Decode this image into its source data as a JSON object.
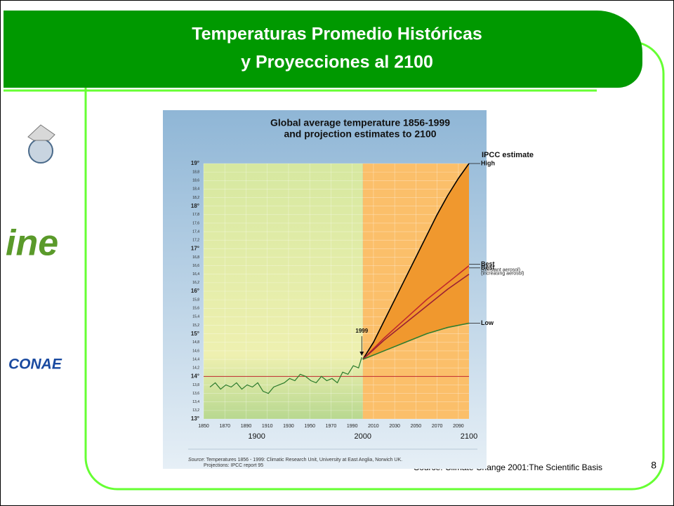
{
  "slide": {
    "title_line1": "Temperaturas Promedio Históricas",
    "title_line2": "y Proyecciones al 2100",
    "logo2": "ine",
    "logo3": "CONAE",
    "footer_source": "Source: Climate Change 2001:The Scientific Basis",
    "page_number": "8"
  },
  "chart_data": {
    "type": "line",
    "title_line1": "Global average temperature 1856-1999",
    "title_line2": "and projection estimates to 2100",
    "legend_title": "IPCC estimate",
    "source_label": "Source",
    "source_text": ": Temperatures 1856 - 1999: Climatic Research Unit, University at East Anglia, Norwich UK.",
    "source_text2": "Projections: IPCC report 95",
    "annotation": "1999",
    "reference_line": 14,
    "xlim": [
      1850,
      2100
    ],
    "xticks": [
      1850,
      1870,
      1890,
      1910,
      1930,
      1950,
      1970,
      1990,
      2010,
      2030,
      2050,
      2070,
      2090
    ],
    "xticks_major": [
      1900,
      2000,
      2100
    ],
    "projection_start": 2000,
    "ylim": [
      13,
      19
    ],
    "yticks": [
      {
        "value": 13,
        "label": "13°"
      },
      {
        "value": 13.2,
        "label": "13,2"
      },
      {
        "value": 13.4,
        "label": "13,4"
      },
      {
        "value": 13.6,
        "label": "13,6"
      },
      {
        "value": 13.8,
        "label": "13,8"
      },
      {
        "value": 14,
        "label": "14°"
      },
      {
        "value": 14.2,
        "label": "14,2"
      },
      {
        "value": 14.4,
        "label": "14,4"
      },
      {
        "value": 14.6,
        "label": "14,6"
      },
      {
        "value": 14.8,
        "label": "14,8"
      },
      {
        "value": 15,
        "label": "15°"
      },
      {
        "value": 15.2,
        "label": "15,2"
      },
      {
        "value": 15.4,
        "label": "15,4"
      },
      {
        "value": 15.6,
        "label": "15,6"
      },
      {
        "value": 15.8,
        "label": "15,8"
      },
      {
        "value": 16,
        "label": "16°"
      },
      {
        "value": 16.2,
        "label": "16,2"
      },
      {
        "value": 16.4,
        "label": "16,4"
      },
      {
        "value": 16.6,
        "label": "16,6"
      },
      {
        "value": 16.8,
        "label": "16,8"
      },
      {
        "value": 17,
        "label": "17°"
      },
      {
        "value": 17.2,
        "label": "17,2"
      },
      {
        "value": 17.4,
        "label": "17,4"
      },
      {
        "value": 17.6,
        "label": "17,6"
      },
      {
        "value": 17.8,
        "label": "17,8"
      },
      {
        "value": 18,
        "label": "18°"
      },
      {
        "value": 18.2,
        "label": "18,2"
      },
      {
        "value": 18.4,
        "label": "18,4"
      },
      {
        "value": 18.6,
        "label": "18,6"
      },
      {
        "value": 18.8,
        "label": "18,8"
      },
      {
        "value": 19,
        "label": "19°"
      }
    ],
    "series": [
      {
        "color": "#2a7a2a",
        "x": [
          1856,
          1861,
          1866,
          1871,
          1876,
          1881,
          1886,
          1891,
          1896,
          1901,
          1906,
          1911,
          1916,
          1921,
          1926,
          1931,
          1936,
          1941,
          1946,
          1951,
          1956,
          1961,
          1966,
          1971,
          1976,
          1981,
          1986,
          1991,
          1996,
          1999
        ],
        "values": [
          13.75,
          13.85,
          13.7,
          13.8,
          13.75,
          13.85,
          13.7,
          13.8,
          13.75,
          13.85,
          13.65,
          13.6,
          13.75,
          13.8,
          13.85,
          13.95,
          13.9,
          14.05,
          14.0,
          13.9,
          13.85,
          14.0,
          13.9,
          13.95,
          13.85,
          14.1,
          14.05,
          14.25,
          14.2,
          14.45
        ]
      },
      {
        "name": "High",
        "color": "#000000",
        "x": [
          2000,
          2010,
          2020,
          2030,
          2040,
          2050,
          2060,
          2070,
          2080,
          2090,
          2100
        ],
        "values": [
          14.4,
          14.8,
          15.3,
          15.8,
          16.3,
          16.8,
          17.3,
          17.8,
          18.25,
          18.65,
          19.0
        ]
      },
      {
        "name": "Best",
        "note": "(constant aerosol)",
        "color": "#c0282d",
        "x": [
          2000,
          2020,
          2040,
          2060,
          2080,
          2100
        ],
        "values": [
          14.4,
          14.9,
          15.35,
          15.8,
          16.2,
          16.6
        ]
      },
      {
        "name": "Best",
        "note": "(increasing aerosol)",
        "color": "#9a1f35",
        "x": [
          2000,
          2020,
          2040,
          2060,
          2080,
          2100
        ],
        "values": [
          14.4,
          14.85,
          15.25,
          15.65,
          16.05,
          16.4
        ]
      },
      {
        "name": "Low",
        "color": "#2e7d2e",
        "x": [
          2000,
          2020,
          2040,
          2060,
          2080,
          2100
        ],
        "values": [
          14.4,
          14.6,
          14.8,
          15.0,
          15.15,
          15.25
        ]
      }
    ]
  }
}
